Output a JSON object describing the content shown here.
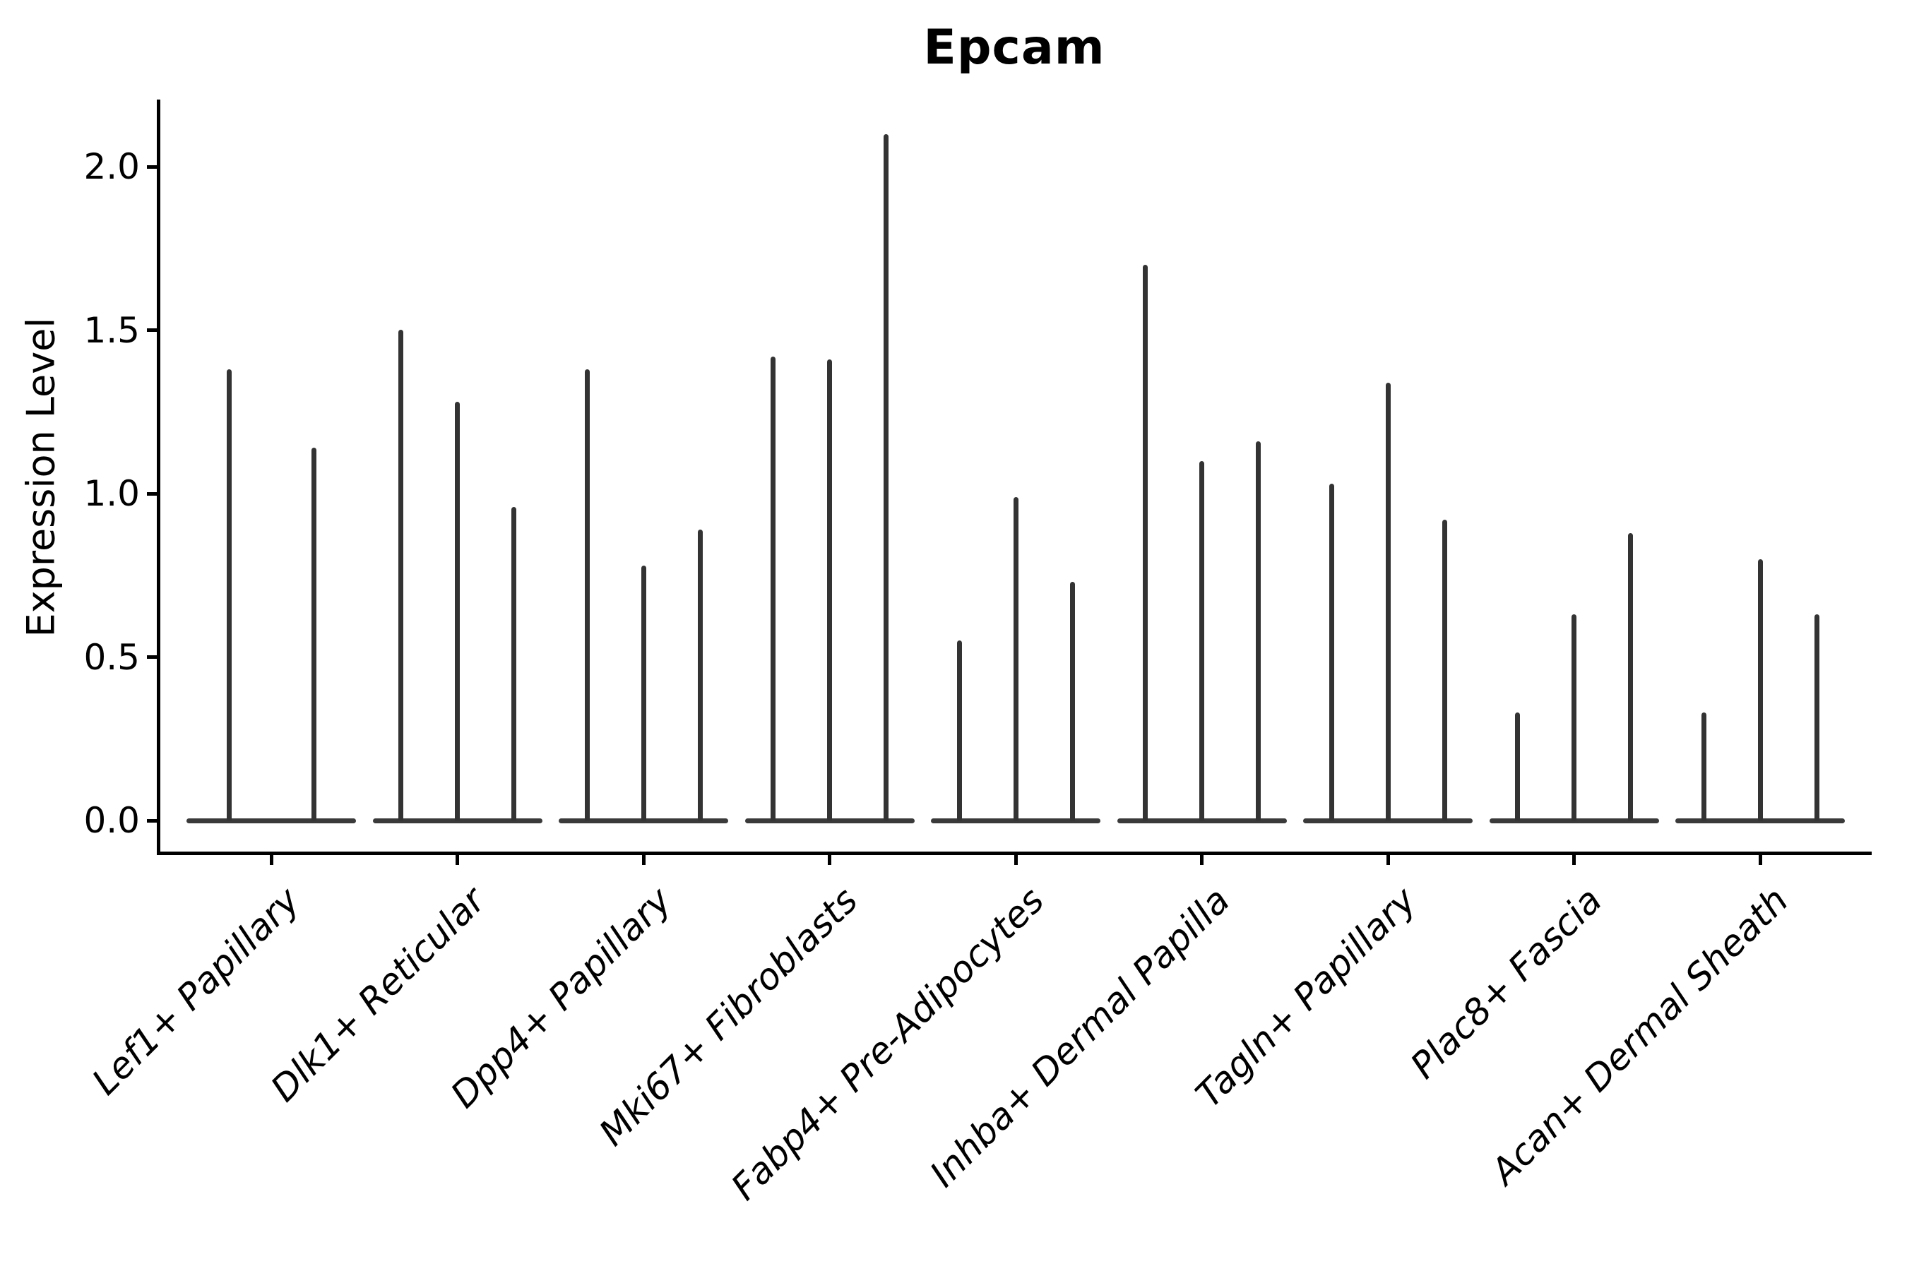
{
  "title": "Epcam",
  "axes": {
    "ylabel": "Expression Level",
    "xlabel": ""
  },
  "colors": {
    "violin": "#333333",
    "violin_base": "#3a3a3a",
    "axis": "#000000",
    "text": "#000000",
    "background": "#ffffff"
  },
  "chart_data": {
    "type": "violin",
    "title": "Epcam",
    "xlabel": "",
    "ylabel": "Expression Level",
    "ylim": [
      -0.1,
      2.2
    ],
    "yticks": [
      0.0,
      0.5,
      1.0,
      1.5,
      2.0
    ],
    "ytick_labels": [
      "0.0",
      "0.5",
      "1.0",
      "1.5",
      "2.0"
    ],
    "grid": false,
    "legend_position": "none",
    "orientation": "vertical",
    "note": "Thin needle-like violins: expression mass concentrated at 0 with a narrow spike up to each violin's maximum value.",
    "categories": [
      "Lef1+ Papillary",
      "Dlk1+ Reticular",
      "Dpp4+ Papillary",
      "Mki67+ Fibroblasts",
      "Fabp4+ Pre-Adipocytes",
      "Inhba+ Dermal Papilla",
      "Tagln+ Papillary",
      "Plac8+ Fascia",
      "Acan+ Dermal Sheath"
    ],
    "groups": [
      {
        "category": "Lef1+ Papillary",
        "violin_max_values": [
          1.38,
          1.14
        ]
      },
      {
        "category": "Dlk1+ Reticular",
        "violin_max_values": [
          1.5,
          1.28,
          0.96
        ]
      },
      {
        "category": "Dpp4+ Papillary",
        "violin_max_values": [
          1.38,
          0.78,
          0.89
        ]
      },
      {
        "category": "Mki67+ Fibroblasts",
        "violin_max_values": [
          1.42,
          1.41,
          2.1
        ]
      },
      {
        "category": "Fabp4+ Pre-Adipocytes",
        "violin_max_values": [
          0.55,
          0.99,
          0.73
        ]
      },
      {
        "category": "Inhba+ Dermal Papilla",
        "violin_max_values": [
          1.7,
          1.1,
          1.16
        ]
      },
      {
        "category": "Tagln+ Papillary",
        "violin_max_values": [
          1.03,
          1.34,
          0.92
        ]
      },
      {
        "category": "Plac8+ Fascia",
        "violin_max_values": [
          0.33,
          0.63,
          0.88
        ]
      },
      {
        "category": "Acan+ Dermal Sheath",
        "violin_max_values": [
          0.33,
          0.8,
          0.63
        ]
      }
    ]
  }
}
